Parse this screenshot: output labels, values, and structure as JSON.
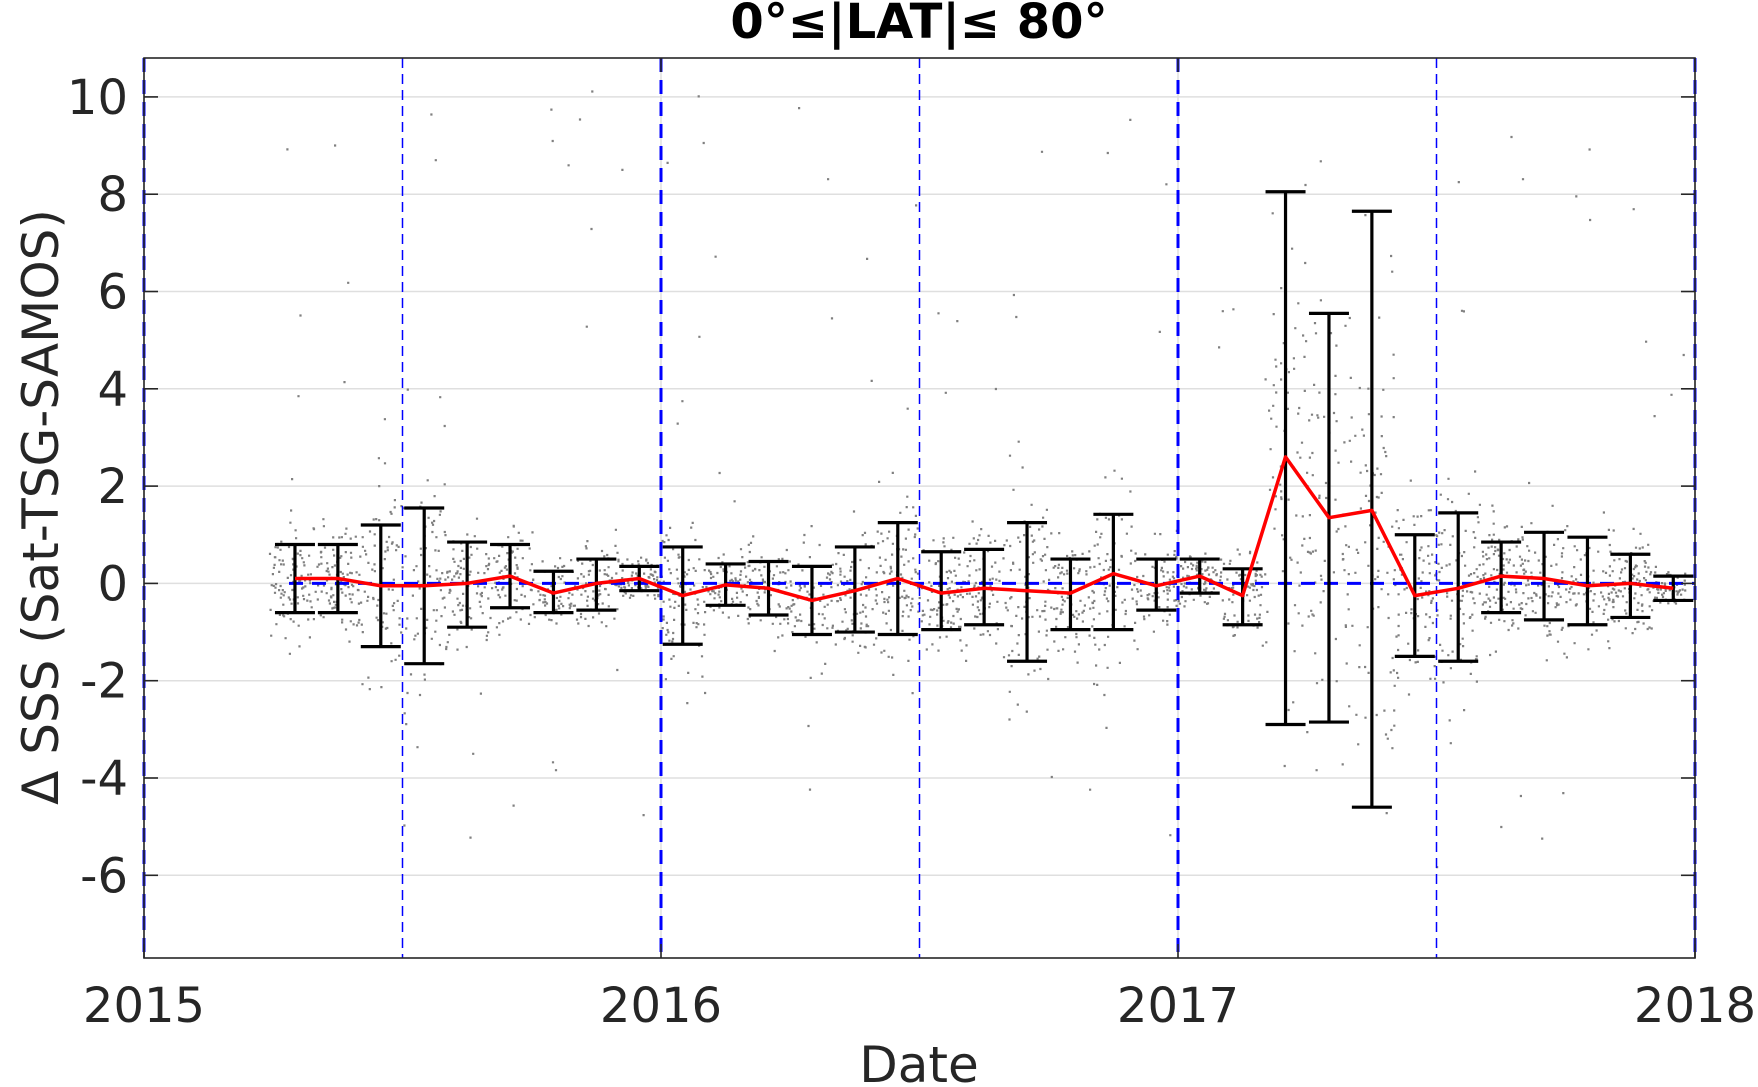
{
  "chart_data": {
    "type": "scatter",
    "title": "0°≤|LAT|≤ 80°",
    "xlabel": "Date",
    "ylabel": "Δ SSS (Sat-TSG-SAMOS)",
    "xlim": [
      2015.0,
      2018.0
    ],
    "ylim": [
      -7.7,
      10.8
    ],
    "x_ticks": [
      2015,
      2016,
      2017,
      2018
    ],
    "x_tick_labels": [
      "2015",
      "2016",
      "2017",
      "2018"
    ],
    "y_ticks": [
      10,
      8,
      6,
      4,
      2,
      0,
      -2,
      -4,
      -6
    ],
    "y_tick_labels": [
      "10",
      "8",
      "6",
      "4",
      "2",
      "0",
      "-2",
      "-4",
      "-6"
    ],
    "grid": true,
    "year_marker_lines": [
      2015.0,
      2016.0,
      2017.0,
      2018.0
    ],
    "half_year_marker_lines": [
      2015.5,
      2016.5,
      2017.5
    ],
    "zero_line": 0,
    "colors": {
      "scatter": "#808080",
      "monthly_mean": "#ff0000",
      "error_bars": "#000000",
      "reference_lines": "#0000ff",
      "grid": "#dfdfdf"
    },
    "scatter_description_range": [
      2015.24,
      2017.98
    ],
    "series": [
      {
        "kind": "monthly-mean-with-error-bars",
        "x": [
          2015.292,
          2015.375,
          2015.458,
          2015.542,
          2015.625,
          2015.708,
          2015.792,
          2015.875,
          2015.958,
          2016.042,
          2016.125,
          2016.208,
          2016.292,
          2016.375,
          2016.458,
          2016.542,
          2016.625,
          2016.708,
          2016.792,
          2016.875,
          2016.958,
          2017.042,
          2017.125,
          2017.208,
          2017.292,
          2017.375,
          2017.458,
          2017.542,
          2017.625,
          2017.708,
          2017.792,
          2017.875,
          2017.958
        ],
        "mean": [
          0.1,
          0.1,
          -0.05,
          -0.05,
          0.0,
          0.15,
          -0.2,
          0.0,
          0.1,
          -0.25,
          -0.03,
          -0.1,
          -0.35,
          -0.15,
          0.1,
          -0.2,
          -0.1,
          -0.15,
          -0.2,
          0.2,
          -0.05,
          0.15,
          -0.25,
          2.6,
          1.35,
          1.5,
          -0.25,
          -0.1,
          0.15,
          0.1,
          -0.05,
          0.0,
          -0.1
        ],
        "upper": [
          0.8,
          0.8,
          1.2,
          1.55,
          0.85,
          0.8,
          0.25,
          0.5,
          0.35,
          0.75,
          0.4,
          0.45,
          0.35,
          0.75,
          1.25,
          0.65,
          0.7,
          1.25,
          0.5,
          1.42,
          0.5,
          0.5,
          0.3,
          8.05,
          5.55,
          7.65,
          1.0,
          1.45,
          0.85,
          1.05,
          0.95,
          0.6,
          0.15
        ],
        "lower": [
          -0.6,
          -0.6,
          -1.3,
          -1.65,
          -0.9,
          -0.5,
          -0.6,
          -0.55,
          -0.15,
          -1.25,
          -0.45,
          -0.65,
          -1.05,
          -1.0,
          -1.05,
          -0.95,
          -0.85,
          -1.6,
          -0.95,
          -0.95,
          -0.55,
          -0.2,
          -0.85,
          -2.9,
          -2.85,
          -4.6,
          -1.5,
          -1.6,
          -0.6,
          -0.75,
          -0.85,
          -0.7,
          -0.35
        ]
      }
    ]
  }
}
